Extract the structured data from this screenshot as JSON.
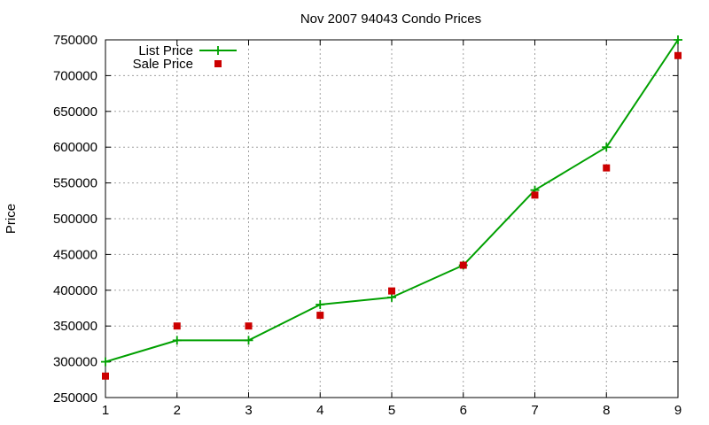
{
  "chart_data": {
    "type": "line",
    "title": "Nov 2007 94043 Condo Prices",
    "xlabel": "",
    "ylabel": "Price",
    "x": [
      1,
      2,
      3,
      4,
      5,
      6,
      7,
      8,
      9
    ],
    "xlim": [
      1,
      9
    ],
    "ylim": [
      250000,
      750000
    ],
    "xticks": [
      "1",
      "2",
      "3",
      "4",
      "5",
      "6",
      "7",
      "8",
      "9"
    ],
    "yticks": [
      "250000",
      "300000",
      "350000",
      "400000",
      "450000",
      "500000",
      "550000",
      "600000",
      "650000",
      "700000",
      "750000"
    ],
    "grid": true,
    "legend_position": "top-left",
    "series": [
      {
        "name": "List Price",
        "style": "linespoints",
        "marker": "plus",
        "color": "#00a000",
        "values": [
          300000,
          330000,
          330000,
          380000,
          390000,
          435000,
          540000,
          600000,
          750000
        ]
      },
      {
        "name": "Sale Price",
        "style": "points",
        "marker": "square",
        "color": "#cc0000",
        "values": [
          280000,
          350000,
          350000,
          365000,
          399000,
          435000,
          533000,
          571000,
          728000
        ]
      }
    ]
  }
}
